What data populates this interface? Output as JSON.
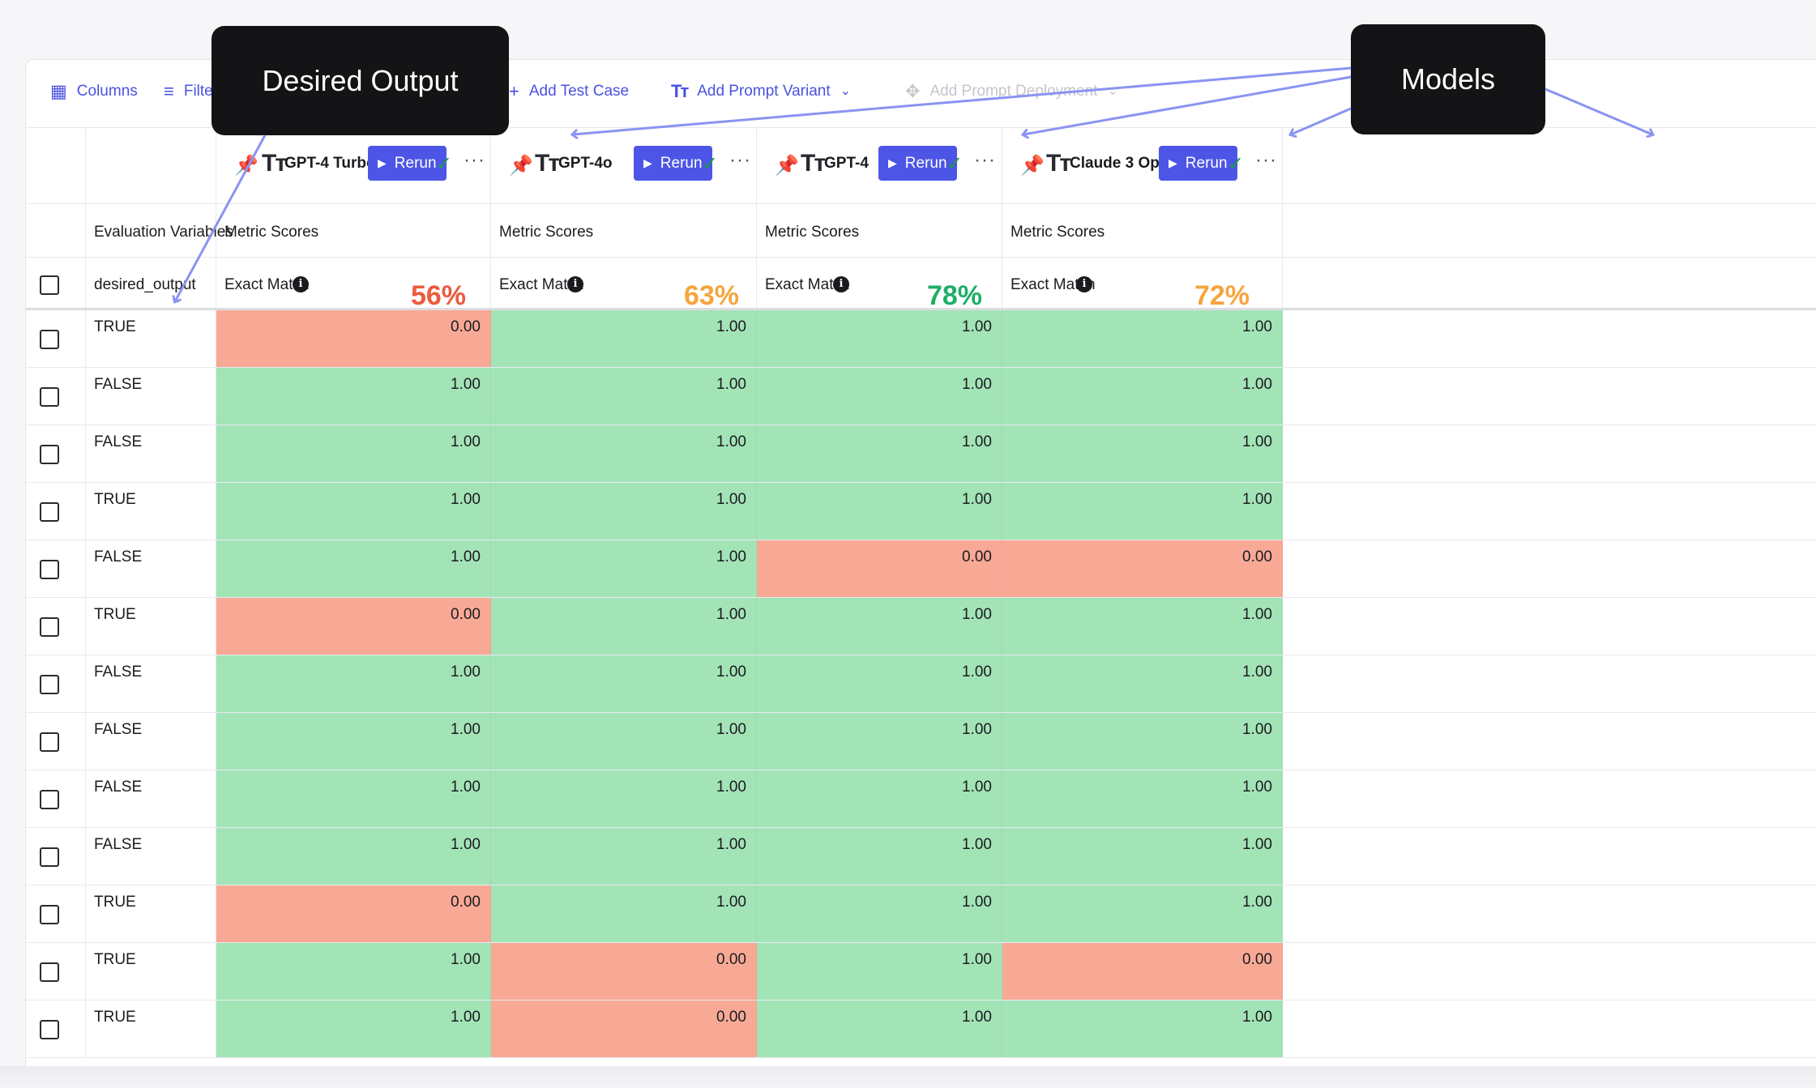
{
  "toolbar": {
    "columns": "Columns",
    "filter": "Filter",
    "add_test_case": "Add Test Case",
    "add_prompt_variant": "Add Prompt Variant",
    "add_prompt_deployment": "Add Prompt Deployment"
  },
  "callouts": {
    "desired_output": "Desired Output",
    "models": "Models"
  },
  "header": {
    "evaluation_variables": "Evaluation Variables",
    "desired_output_col": "desired_output",
    "metric_scores": "Metric Scores",
    "exact_match": "Exact Match",
    "rerun": "Rerun"
  },
  "models": [
    {
      "name": "GPT-4 Turbo",
      "score": "56%",
      "score_color": "#ec5b3f"
    },
    {
      "name": "GPT-4o",
      "score": "63%",
      "score_color": "#f5a53d"
    },
    {
      "name": "GPT-4",
      "score": "78%",
      "score_color": "#1fae67"
    },
    {
      "name": "Claude 3 Opus",
      "score": "72%",
      "score_color": "#f5a53d"
    }
  ],
  "colors": {
    "pass": "#a3e4b7",
    "fail": "#f8a996",
    "accent": "#4d55e6"
  },
  "rows": [
    {
      "desired": "TRUE",
      "scores": [
        "0.00",
        "1.00",
        "1.00",
        "1.00"
      ]
    },
    {
      "desired": "FALSE",
      "scores": [
        "1.00",
        "1.00",
        "1.00",
        "1.00"
      ]
    },
    {
      "desired": "FALSE",
      "scores": [
        "1.00",
        "1.00",
        "1.00",
        "1.00"
      ]
    },
    {
      "desired": "TRUE",
      "scores": [
        "1.00",
        "1.00",
        "1.00",
        "1.00"
      ]
    },
    {
      "desired": "FALSE",
      "scores": [
        "1.00",
        "1.00",
        "0.00",
        "0.00"
      ]
    },
    {
      "desired": "TRUE",
      "scores": [
        "0.00",
        "1.00",
        "1.00",
        "1.00"
      ]
    },
    {
      "desired": "FALSE",
      "scores": [
        "1.00",
        "1.00",
        "1.00",
        "1.00"
      ]
    },
    {
      "desired": "FALSE",
      "scores": [
        "1.00",
        "1.00",
        "1.00",
        "1.00"
      ]
    },
    {
      "desired": "FALSE",
      "scores": [
        "1.00",
        "1.00",
        "1.00",
        "1.00"
      ]
    },
    {
      "desired": "FALSE",
      "scores": [
        "1.00",
        "1.00",
        "1.00",
        "1.00"
      ]
    },
    {
      "desired": "TRUE",
      "scores": [
        "0.00",
        "1.00",
        "1.00",
        "1.00"
      ]
    },
    {
      "desired": "TRUE",
      "scores": [
        "1.00",
        "0.00",
        "1.00",
        "0.00"
      ]
    },
    {
      "desired": "TRUE",
      "scores": [
        "1.00",
        "0.00",
        "1.00",
        "1.00"
      ]
    }
  ]
}
